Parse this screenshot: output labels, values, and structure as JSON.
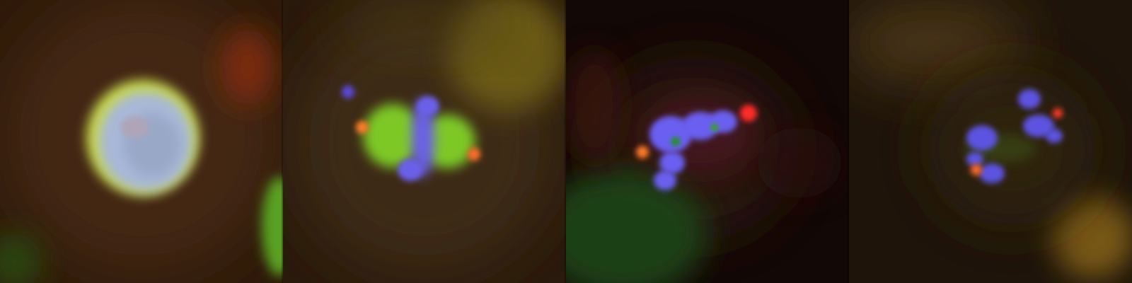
{
  "panels": [
    {
      "stage": "interphase-nucleus"
    },
    {
      "stage": "metaphase-spindle"
    },
    {
      "stage": "anaphase-chromosomes"
    },
    {
      "stage": "telophase-chromosomes"
    }
  ],
  "colors": {
    "dna": "#6a63f0",
    "spindle": "#9be02a",
    "centrosome": "#ff6a2a",
    "kinetochore": "#ff2a2a",
    "background_brown": "#3a2410",
    "background_dark": "#100804"
  }
}
